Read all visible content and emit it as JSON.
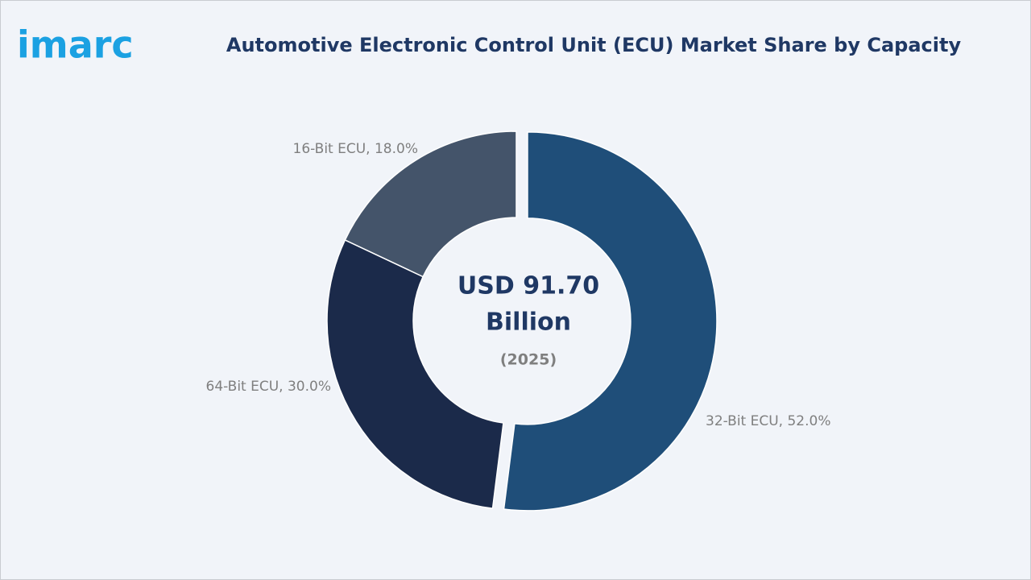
{
  "logo": "imarc",
  "chart_data": {
    "type": "donut",
    "title": "Automotive Electronic Control Unit (ECU) Market Share by Capacity",
    "values": [
      52.0,
      30.0,
      18.0
    ],
    "value_labels": [
      "32-Bit ECU, 52.0%",
      "64-Bit ECU, 30.0%",
      "16-Bit ECU, 18.0%"
    ],
    "colors": [
      "#1f4e79",
      "#1b2a4a",
      "#44546a"
    ],
    "center_label": [
      "USD 91.70",
      "Billion"
    ],
    "center_sublabel": "(2025)"
  }
}
